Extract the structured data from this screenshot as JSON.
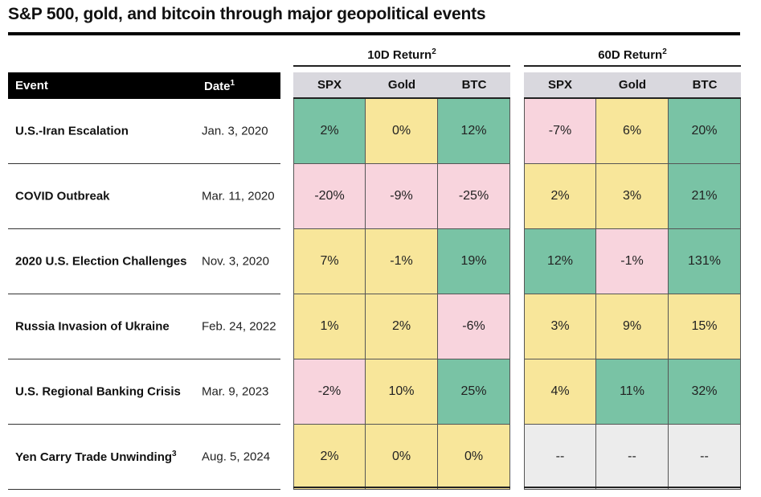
{
  "title": "S&P 500, gold, and bitcoin through major geopolitical events",
  "headers": {
    "event": "Event",
    "date": "Date",
    "date_sup": "1",
    "group_10d": "10D Return",
    "group_60d": "60D Return",
    "group_sup": "2",
    "columns": [
      "SPX",
      "Gold",
      "BTC"
    ]
  },
  "colors": {
    "positive": "#79c3a5",
    "neutral": "#f8e69a",
    "negative": "#f8d4dd",
    "not_available": "#ececec"
  },
  "chart_data": {
    "type": "table",
    "title": "S&P 500, gold, and bitcoin through major geopolitical events",
    "columns": [
      "Event",
      "Date",
      "10D Return SPX",
      "10D Return Gold",
      "10D Return BTC",
      "60D Return SPX",
      "60D Return Gold",
      "60D Return BTC"
    ],
    "rows": [
      {
        "event": "U.S.-Iran Escalation",
        "sup": "",
        "date": "Jan. 3, 2020",
        "d10": [
          "2%",
          "0%",
          "12%"
        ],
        "d60": [
          "-7%",
          "6%",
          "20%"
        ],
        "c10": [
          "pos",
          "neu",
          "pos"
        ],
        "c60": [
          "neg",
          "neu",
          "pos"
        ]
      },
      {
        "event": "COVID Outbreak",
        "sup": "",
        "date": "Mar. 11, 2020",
        "d10": [
          "-20%",
          "-9%",
          "-25%"
        ],
        "d60": [
          "2%",
          "3%",
          "21%"
        ],
        "c10": [
          "neg",
          "neg",
          "neg"
        ],
        "c60": [
          "neu",
          "neu",
          "pos"
        ]
      },
      {
        "event": "2020 U.S. Election Challenges",
        "sup": "",
        "date": "Nov. 3, 2020",
        "d10": [
          "7%",
          "-1%",
          "19%"
        ],
        "d60": [
          "12%",
          "-1%",
          "131%"
        ],
        "c10": [
          "neu",
          "neu",
          "pos"
        ],
        "c60": [
          "pos",
          "neg",
          "pos"
        ]
      },
      {
        "event": "Russia Invasion of Ukraine",
        "sup": "",
        "date": "Feb. 24, 2022",
        "d10": [
          "1%",
          "2%",
          "-6%"
        ],
        "d60": [
          "3%",
          "9%",
          "15%"
        ],
        "c10": [
          "neu",
          "neu",
          "neg"
        ],
        "c60": [
          "neu",
          "neu",
          "neu"
        ]
      },
      {
        "event": "U.S. Regional Banking Crisis",
        "sup": "",
        "date": "Mar. 9, 2023",
        "d10": [
          "-2%",
          "10%",
          "25%"
        ],
        "d60": [
          "4%",
          "11%",
          "32%"
        ],
        "c10": [
          "neg",
          "neu",
          "pos"
        ],
        "c60": [
          "neu",
          "pos",
          "pos"
        ]
      },
      {
        "event": "Yen Carry Trade Unwinding",
        "sup": "3",
        "date": "Aug. 5, 2024",
        "d10": [
          "2%",
          "0%",
          "0%"
        ],
        "d60": [
          "--",
          "--",
          "--"
        ],
        "c10": [
          "neu",
          "neu",
          "neu"
        ],
        "c60": [
          "na",
          "na",
          "na"
        ]
      }
    ]
  }
}
